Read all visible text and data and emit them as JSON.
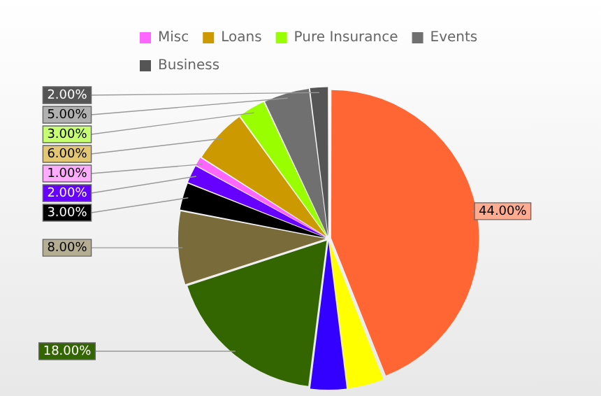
{
  "chart_data": {
    "type": "pie",
    "categories": [
      null,
      null,
      null,
      null,
      null,
      null,
      null,
      "Misc",
      "Loans",
      "Pure Insurance",
      "Events",
      "Business"
    ],
    "values": [
      44,
      4,
      4,
      18,
      8,
      3,
      2,
      1,
      6,
      3,
      5,
      2
    ],
    "colors": [
      "#ff6633",
      "#ffff00",
      "#3300ff",
      "#336600",
      "#7a6b3a",
      "#000000",
      "#6600ff",
      "#ff66ff",
      "#cc9900",
      "#99ff00",
      "#707070",
      "#555555"
    ],
    "value_labels": [
      "44.00%",
      null,
      null,
      "18.00%",
      "8.00%",
      "3.00%",
      "2.00%",
      "1.00%",
      "6.00%",
      "3.00%",
      "5.00%",
      "2.00%"
    ],
    "legend": "top"
  }
}
